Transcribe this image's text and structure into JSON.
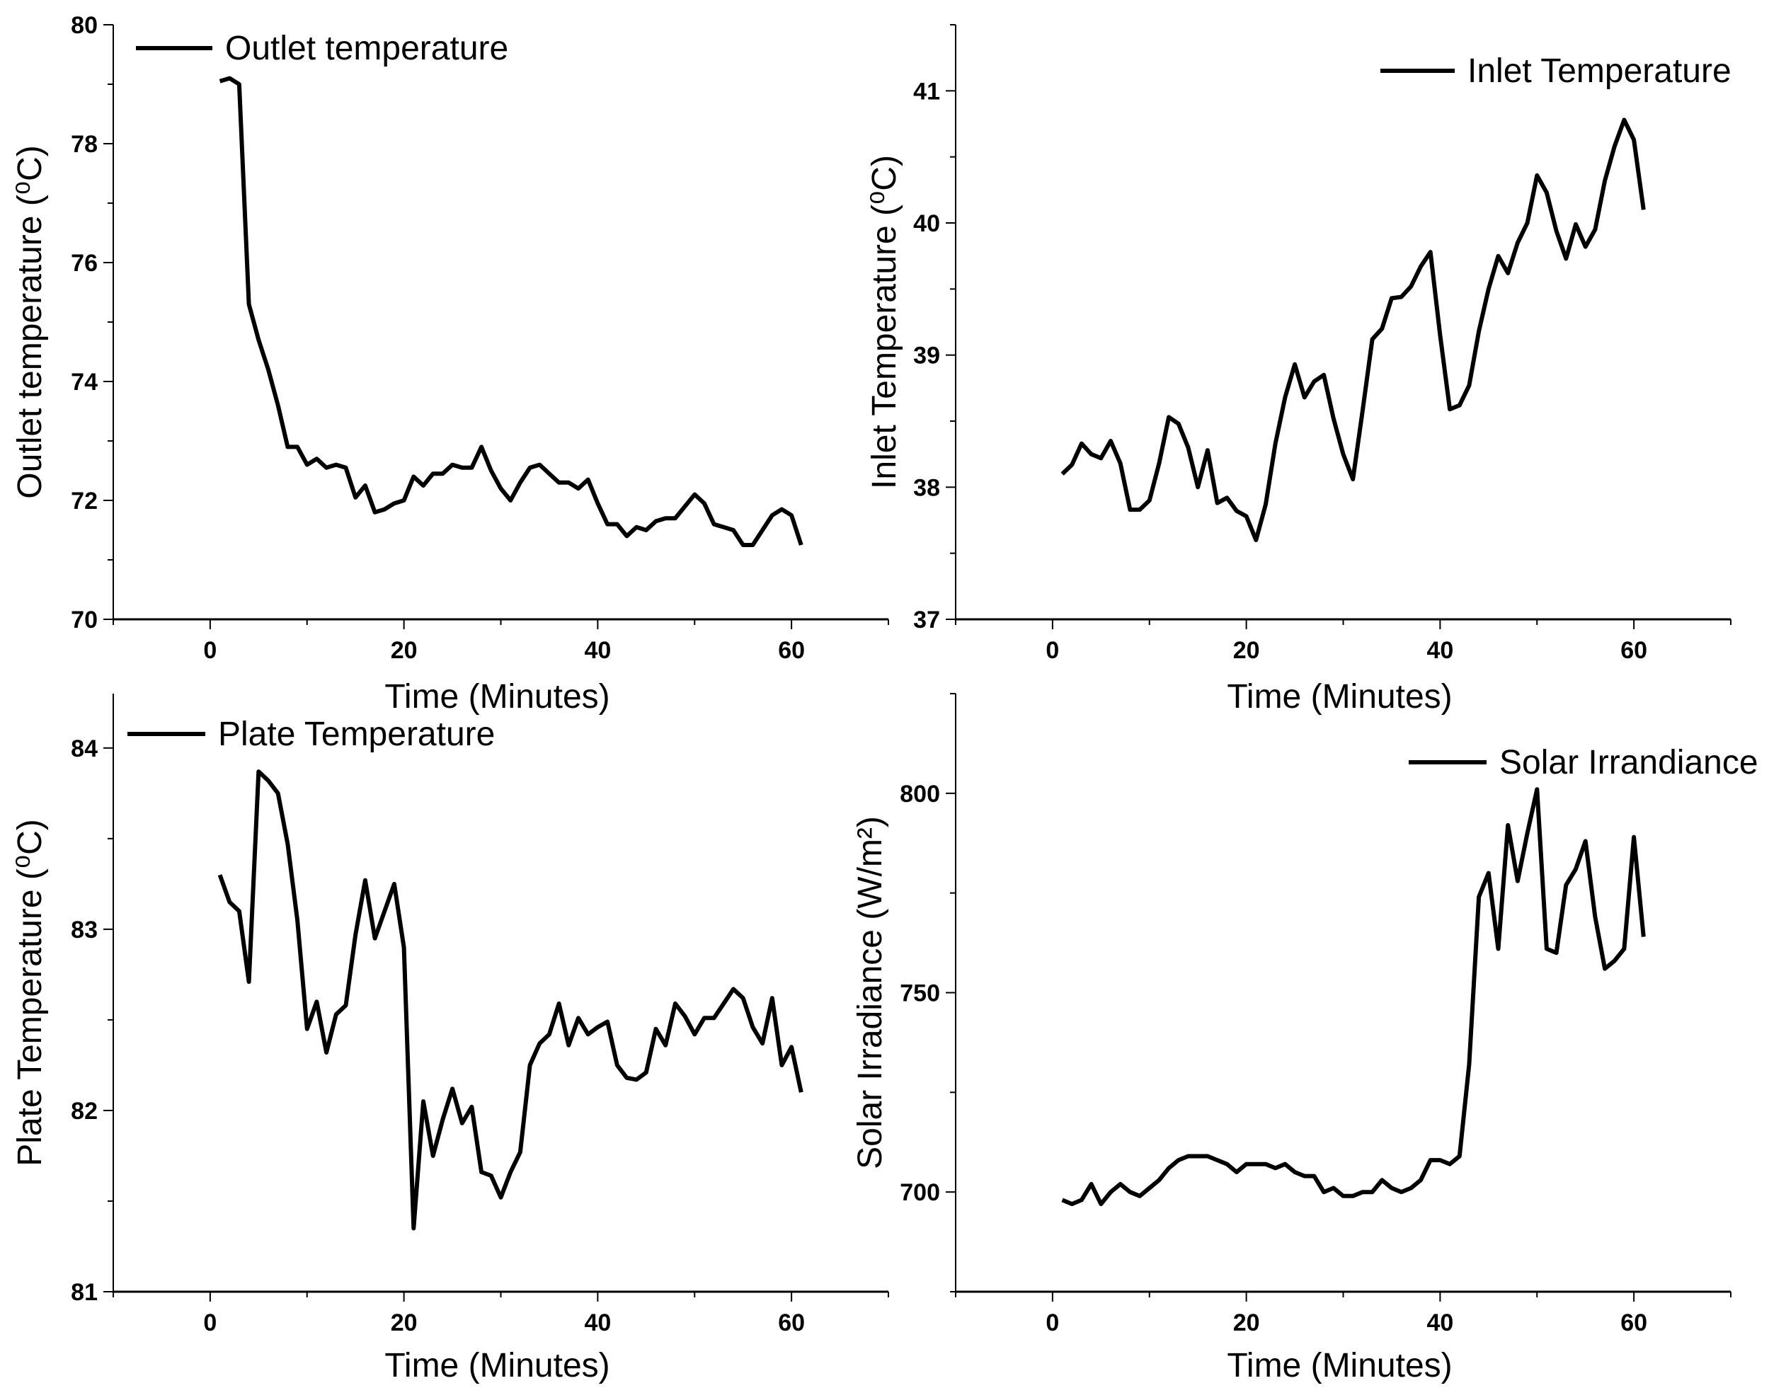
{
  "chart_data": [
    {
      "id": "outlet",
      "type": "line",
      "title": "",
      "xlabel": "Time (Minutes)",
      "ylabel": "Outlet temperature (⁰C)",
      "xlim": [
        -10,
        70
      ],
      "ylim": [
        70,
        80
      ],
      "xticks": [
        0,
        20,
        40,
        60
      ],
      "yticks": [
        70,
        72,
        74,
        76,
        78,
        80
      ],
      "legend": "top-left",
      "series": [
        {
          "name": "Outlet temperature",
          "x": [
            1,
            2,
            3,
            4,
            5,
            6,
            7,
            8,
            9,
            10,
            11,
            12,
            13,
            14,
            15,
            16,
            17,
            18,
            19,
            20,
            21,
            22,
            23,
            24,
            25,
            26,
            27,
            28,
            29,
            30,
            31,
            32,
            33,
            34,
            35,
            36,
            37,
            38,
            39,
            40,
            41,
            42,
            43,
            44,
            45,
            46,
            47,
            48,
            49,
            50,
            51,
            52,
            53,
            54,
            55,
            56,
            57,
            58,
            59,
            60,
            61
          ],
          "values": [
            79.05,
            79.1,
            79.0,
            75.3,
            74.7,
            74.2,
            73.6,
            72.9,
            72.9,
            72.6,
            72.7,
            72.55,
            72.6,
            72.55,
            72.05,
            72.25,
            71.8,
            71.85,
            71.95,
            72.0,
            72.4,
            72.25,
            72.45,
            72.45,
            72.6,
            72.55,
            72.55,
            72.9,
            72.5,
            72.2,
            72.0,
            72.3,
            72.55,
            72.6,
            72.45,
            72.3,
            72.3,
            72.2,
            72.35,
            71.95,
            71.6,
            71.6,
            71.4,
            71.55,
            71.5,
            71.65,
            71.7,
            71.7,
            71.9,
            72.1,
            71.95,
            71.6,
            71.55,
            71.5,
            71.25,
            71.25,
            71.5,
            71.75,
            71.85,
            71.75,
            71.25
          ]
        }
      ]
    },
    {
      "id": "inlet",
      "type": "line",
      "title": "",
      "xlabel": "Time (Minutes)",
      "ylabel": "Inlet Temperature (⁰C)",
      "xlim": [
        -10,
        70
      ],
      "ylim": [
        37,
        41.5
      ],
      "xticks": [
        0,
        20,
        40,
        60
      ],
      "yticks": [
        37,
        38,
        39,
        40,
        41
      ],
      "legend": "top-right",
      "series": [
        {
          "name": "Inlet Temperature",
          "x": [
            1,
            2,
            3,
            4,
            5,
            6,
            7,
            8,
            9,
            10,
            11,
            12,
            13,
            14,
            15,
            16,
            17,
            18,
            19,
            20,
            21,
            22,
            23,
            24,
            25,
            26,
            27,
            28,
            29,
            30,
            31,
            32,
            33,
            34,
            35,
            36,
            37,
            38,
            39,
            40,
            41,
            42,
            43,
            44,
            45,
            46,
            47,
            48,
            49,
            50,
            51,
            52,
            53,
            54,
            55,
            56,
            57,
            58,
            59,
            60,
            61
          ],
          "values": [
            38.1,
            38.17,
            38.33,
            38.25,
            38.22,
            38.35,
            38.18,
            37.83,
            37.83,
            37.9,
            38.18,
            38.53,
            38.48,
            38.3,
            38.0,
            38.28,
            37.88,
            37.92,
            37.82,
            37.78,
            37.6,
            37.87,
            38.33,
            38.68,
            38.93,
            38.68,
            38.8,
            38.85,
            38.52,
            38.25,
            38.06,
            38.58,
            39.12,
            39.2,
            39.43,
            39.44,
            39.52,
            39.67,
            39.78,
            39.15,
            38.59,
            38.62,
            38.77,
            39.18,
            39.5,
            39.75,
            39.62,
            39.85,
            40.0,
            40.36,
            40.23,
            39.94,
            39.73,
            39.99,
            39.82,
            39.95,
            40.32,
            40.58,
            40.78,
            40.63,
            40.1
          ]
        }
      ]
    },
    {
      "id": "plate",
      "type": "line",
      "title": "",
      "xlabel": "Time (Minutes)",
      "ylabel": "Plate Temperature (⁰C)",
      "xlim": [
        -10,
        70
      ],
      "ylim": [
        81,
        84.3
      ],
      "xticks": [
        0,
        20,
        40,
        60
      ],
      "yticks": [
        81,
        82,
        83,
        84
      ],
      "legend": "top-left",
      "series": [
        {
          "name": "Plate Temperature",
          "x": [
            1,
            2,
            3,
            4,
            5,
            6,
            7,
            8,
            9,
            10,
            11,
            12,
            13,
            14,
            15,
            16,
            17,
            18,
            19,
            20,
            21,
            22,
            23,
            24,
            25,
            26,
            27,
            28,
            29,
            30,
            31,
            32,
            33,
            34,
            35,
            36,
            37,
            38,
            39,
            40,
            41,
            42,
            43,
            44,
            45,
            46,
            47,
            48,
            49,
            50,
            51,
            52,
            53,
            54,
            55,
            56,
            57,
            58,
            59,
            60,
            61
          ],
          "values": [
            83.3,
            83.15,
            83.1,
            82.71,
            83.87,
            83.82,
            83.75,
            83.47,
            83.05,
            82.45,
            82.6,
            82.32,
            82.53,
            82.58,
            82.97,
            83.27,
            82.95,
            83.1,
            83.25,
            82.9,
            81.35,
            82.05,
            81.75,
            81.95,
            82.12,
            81.93,
            82.02,
            81.66,
            81.64,
            81.52,
            81.66,
            81.77,
            82.25,
            82.37,
            82.42,
            82.59,
            82.36,
            82.51,
            82.42,
            82.46,
            82.49,
            82.25,
            82.18,
            82.17,
            82.21,
            82.45,
            82.36,
            82.59,
            82.52,
            82.42,
            82.51,
            82.51,
            82.59,
            82.67,
            82.62,
            82.46,
            82.37,
            82.62,
            82.25,
            82.35,
            82.1
          ]
        }
      ]
    },
    {
      "id": "solar",
      "type": "line",
      "title": "",
      "xlabel": "Time (Minutes)",
      "ylabel": "Solar Irradiance (W/m²)",
      "xlim": [
        -10,
        70
      ],
      "ylim": [
        675,
        825
      ],
      "xticks": [
        0,
        20,
        40,
        60
      ],
      "yticks": [
        700,
        750,
        800
      ],
      "legend": "top-right",
      "series": [
        {
          "name": "Solar Irrandiance",
          "x": [
            1,
            2,
            3,
            4,
            5,
            6,
            7,
            8,
            9,
            10,
            11,
            12,
            13,
            14,
            15,
            16,
            17,
            18,
            19,
            20,
            21,
            22,
            23,
            24,
            25,
            26,
            27,
            28,
            29,
            30,
            31,
            32,
            33,
            34,
            35,
            36,
            37,
            38,
            39,
            40,
            41,
            42,
            43,
            44,
            45,
            46,
            47,
            48,
            49,
            50,
            51,
            52,
            53,
            54,
            55,
            56,
            57,
            58,
            59,
            60,
            61
          ],
          "values": [
            698,
            697,
            698,
            702,
            697,
            700,
            702,
            700,
            699,
            701,
            703,
            706,
            708,
            709,
            709,
            709,
            708,
            707,
            705,
            707,
            707,
            707,
            706,
            707,
            705,
            704,
            704,
            700,
            701,
            699,
            699,
            700,
            700,
            703,
            701,
            700,
            701,
            703,
            708,
            708,
            707,
            709,
            732,
            774,
            780,
            761,
            792,
            778,
            790,
            801,
            761,
            760,
            777,
            781,
            788,
            769,
            756,
            758,
            761,
            789,
            764
          ]
        }
      ]
    }
  ]
}
